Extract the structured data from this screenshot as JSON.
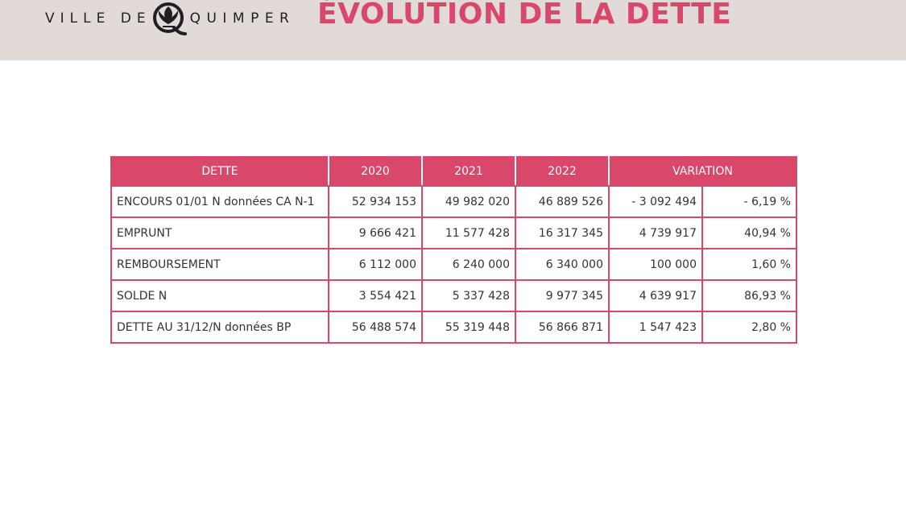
{
  "header": {
    "logo_text_left": "VILLE DE",
    "logo_text_right": "QUIMPER",
    "title": "ÉVOLUTION DE LA DETTE"
  },
  "colors": {
    "accent": "#d9476a",
    "header_background": "#e2dad8"
  },
  "table": {
    "headers": [
      "DETTE",
      "2020",
      "2021",
      "2022",
      "VARIATION"
    ],
    "rows": [
      {
        "label": "ENCOURS 01/01 N données CA N-1",
        "y2020": "52 934 153",
        "y2021": "49 982 020",
        "y2022": "46 889 526",
        "variation": "- 3 092 494",
        "variation_pct": "- 6,19 %"
      },
      {
        "label": "EMPRUNT",
        "y2020": "9 666 421",
        "y2021": "11 577 428",
        "y2022": "16 317 345",
        "variation": "4 739 917",
        "variation_pct": "40,94 %"
      },
      {
        "label": "REMBOURSEMENT",
        "y2020": "6 112 000",
        "y2021": "6 240 000",
        "y2022": "6 340 000",
        "variation": "100 000",
        "variation_pct": "1,60 %"
      },
      {
        "label": "SOLDE N",
        "y2020": "3 554 421",
        "y2021": "5 337 428",
        "y2022": "9 977 345",
        "variation": "4 639 917",
        "variation_pct": "86,93 %"
      },
      {
        "label": "DETTE AU 31/12/N données BP",
        "y2020": "56 488 574",
        "y2021": "55 319 448",
        "y2022": "56 866 871",
        "variation": "1 547 423",
        "variation_pct": "2,80 %"
      }
    ]
  }
}
